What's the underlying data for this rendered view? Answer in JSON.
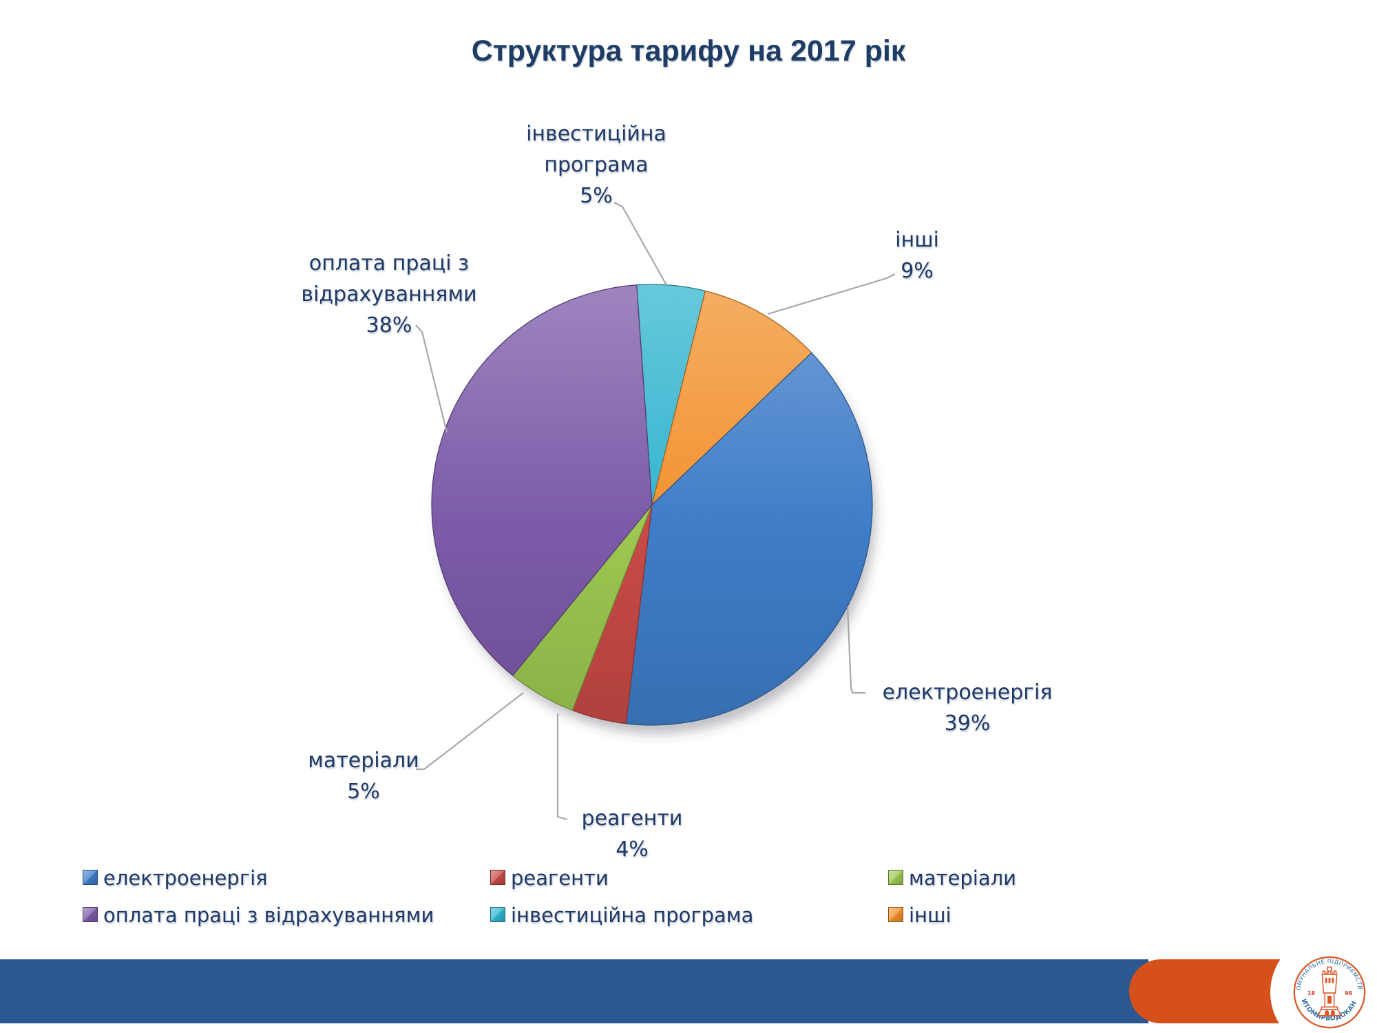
{
  "title": "Структура тарифу на 2017 рік",
  "chart_data": {
    "type": "pie",
    "title": "Структура тарифу на 2017 рік",
    "units": "percent",
    "start_angle_deg": -4,
    "direction": "clockwise",
    "legend_position": "bottom",
    "slices": [
      {
        "name": "investment",
        "label": "інвестиційна програма",
        "value": 5,
        "color": "#31B4CF"
      },
      {
        "name": "other",
        "label": "інші",
        "value": 9,
        "color": "#F2912E"
      },
      {
        "name": "electricity",
        "label": "електроенергія",
        "value": 39,
        "color": "#3F7DC8"
      },
      {
        "name": "reagents",
        "label": "реагенти",
        "value": 4,
        "color": "#C84A45"
      },
      {
        "name": "materials",
        "label": "матеріали",
        "value": 5,
        "color": "#9CC851"
      },
      {
        "name": "labor",
        "label": "оплата праці з відрахуваннями",
        "value": 38,
        "color": "#7C5AA8"
      }
    ]
  },
  "callouts": {
    "invest": "інвестиційна\nпрограма\n5%",
    "inshi": "інші\n9%",
    "oplata": "оплата праці з\nвідрахуваннями\n38%",
    "elektro": "електроенергія\n39%",
    "materialy": "матеріали\n5%",
    "reagenty": "реагенти\n4%"
  },
  "legend": {
    "items": [
      {
        "label": "електроенергія",
        "color": "#3F7DC8"
      },
      {
        "label": "реагенти",
        "color": "#C84A45"
      },
      {
        "label": "матеріали",
        "color": "#9CC851"
      },
      {
        "label": "оплата праці з відрахуваннями",
        "color": "#7C5AA8"
      },
      {
        "label": "інвестиційна програма",
        "color": "#31B4CF"
      },
      {
        "label": "інші",
        "color": "#F2912E"
      }
    ]
  },
  "footer": {
    "bar_blue": "#2B5890",
    "bar_orange": "#D6501C",
    "logo": {
      "top_text": "КОМУНАЛЬНЕ ПІДПРИЄМСТВО",
      "bottom_text": "ЖИТОМИРВОДОКАНАЛ",
      "year_left": "18",
      "year_right": "98",
      "accent": "#D95A28",
      "text_color": "#2F6AA0"
    }
  }
}
